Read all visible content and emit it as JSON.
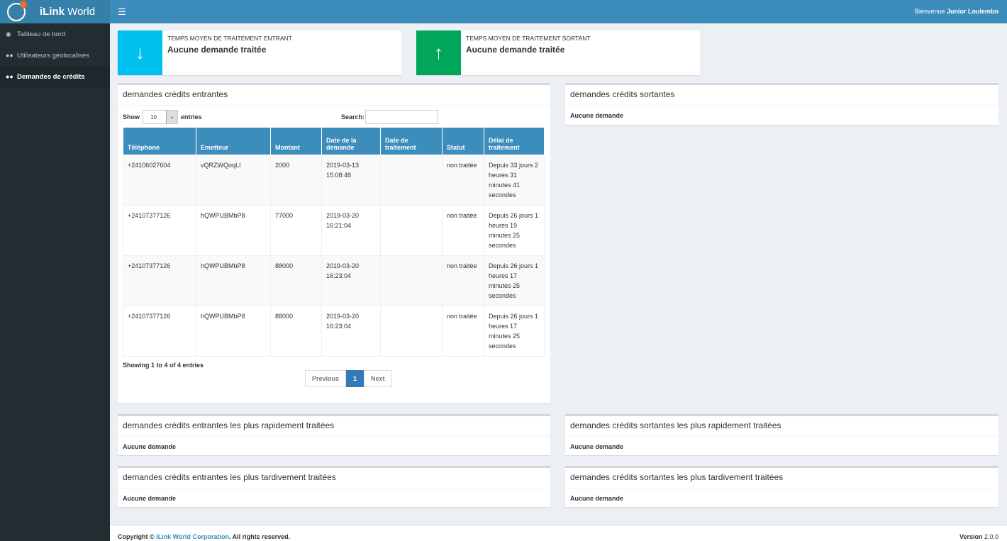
{
  "app": {
    "brand_bold": "iLink",
    "brand_rest": " World",
    "welcome_prefix": "Bienvenue ",
    "user": "Junior Loulembo"
  },
  "sidebar": {
    "items": [
      {
        "label": "Tableau de bord",
        "icon": "dashboard-icon"
      },
      {
        "label": "Utilisateurs géolocalisés",
        "icon": "users-icon"
      },
      {
        "label": "Demandes de crédits",
        "icon": "users-icon",
        "active": true
      }
    ]
  },
  "info_boxes": [
    {
      "title": "TEMPS MOYEN DE TRAITEMENT ENTRANT",
      "value": "Aucune demande traitée",
      "icon": "arrow-down-icon",
      "color": "#00c0ef"
    },
    {
      "title": "TEMPS MOYEN DE TRAITEMENT SORTANT",
      "value": "Aucune demande traitée",
      "icon": "arrow-up-icon",
      "color": "#00a65a"
    }
  ],
  "incoming": {
    "title": "demandes crédits entrantes",
    "show": "Show",
    "entries_value": "10",
    "entries": "entries",
    "search_label": "Search:",
    "columns": [
      "Téléphone",
      "Emetteur",
      "Montant",
      "Date de la demande",
      "Date de traitement",
      "Statut",
      "Délai de traitement"
    ],
    "rows": [
      [
        "+24106027604",
        "vQRZWQoqLI",
        "2000",
        "2019-03-13 15:08:48",
        "",
        "non traitée",
        "Depuis 33 jours 2 heures 31 minutes 41 secondes"
      ],
      [
        "+24107377126",
        "hQWPUBMbP8",
        "77000",
        "2019-03-20 16:21:04",
        "",
        "non traitée",
        "Depuis 26 jours 1 heures 19 minutes 25 secondes"
      ],
      [
        "+24107377126",
        "hQWPUBMbP8",
        "88000",
        "2019-03-20 16:23:04",
        "",
        "non traitée",
        "Depuis 26 jours 1 heures 17 minutes 25 secondes"
      ],
      [
        "+24107377126",
        "hQWPUBMbP8",
        "88000",
        "2019-03-20 16:23:04",
        "",
        "non traitée",
        "Depuis 26 jours 1 heures 17 minutes 25 secondes"
      ]
    ],
    "info": "Showing 1 to 4 of 4 entries",
    "prev": "Previous",
    "page": "1",
    "next": "Next"
  },
  "outgoing": {
    "title": "demandes crédits sortantes",
    "empty": "Aucune demande"
  },
  "fast_in": {
    "title": "demandes crédits entrantes les plus rapidement traitées",
    "empty": "Aucune demande"
  },
  "fast_out": {
    "title": "demandes crédits sortantes les plus rapidement traitées",
    "empty": "Aucune demande"
  },
  "slow_in": {
    "title": "demandes crédits entrantes les plus tardivement traitées",
    "empty": "Aucune demande"
  },
  "slow_out": {
    "title": "demandes crédits sortantes les plus tardivement traitées",
    "empty": "Aucune demande"
  },
  "footer": {
    "copyright": "Copyright © ",
    "company": "iLink World Corporation",
    "rights": ". All rights reserved.",
    "version_label": "Version",
    "version": "2.0.0"
  }
}
